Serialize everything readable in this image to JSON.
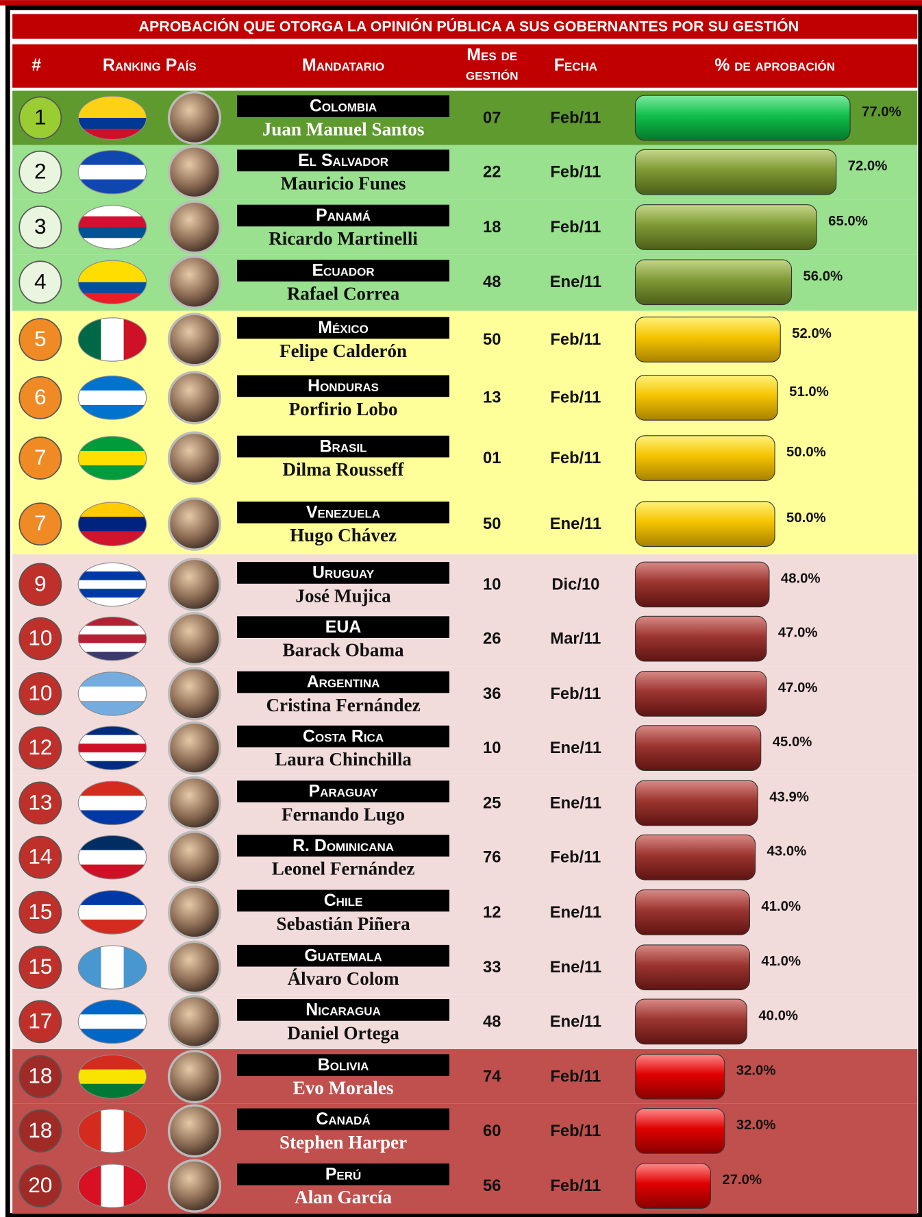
{
  "header": {
    "title": "APROBACIÓN QUE OTORGA LA OPINIÓN PÚBLICA A SUS GOBERNANTES POR SU GESTIÓN"
  },
  "table": {
    "columns": [
      "#",
      "Ranking País",
      "Mandatario",
      "Mes de",
      "gestión",
      "Fecha",
      "% de aprobación"
    ],
    "rows": [
      {
        "rank": "1",
        "country": "Colombia",
        "leader": "Juan Manuel Santos",
        "months": "07",
        "date": "Feb/11",
        "approval": 77.0,
        "approval_label": "77.0%"
      },
      {
        "rank": "2",
        "country": "El Salvador",
        "leader": "Mauricio Funes",
        "months": "22",
        "date": "Feb/11",
        "approval": 72.0,
        "approval_label": "72.0%"
      },
      {
        "rank": "3",
        "country": "Panamá",
        "leader": "Ricardo Martinelli",
        "months": "18",
        "date": "Feb/11",
        "approval": 65.0,
        "approval_label": "65.0%"
      },
      {
        "rank": "4",
        "country": "Ecuador",
        "leader": "Rafael Correa",
        "months": "48",
        "date": "Ene/11",
        "approval": 56.0,
        "approval_label": "56.0%"
      },
      {
        "rank": "5",
        "country": "México",
        "leader": "Felipe Calderón",
        "months": "50",
        "date": "Feb/11",
        "approval": 52.0,
        "approval_label": "52.0%"
      },
      {
        "rank": "6",
        "country": "Honduras",
        "leader": "Porfirio Lobo",
        "months": "13",
        "date": "Feb/11",
        "approval": 51.0,
        "approval_label": "51.0%"
      },
      {
        "rank": "7",
        "country": "Brasil",
        "leader": "Dilma Rousseff",
        "months": "01",
        "date": "Feb/11",
        "approval": 50.0,
        "approval_label": "50.0%"
      },
      {
        "rank": "7",
        "country": "Venezuela",
        "leader": "Hugo Chávez",
        "months": "50",
        "date": "Ene/11",
        "approval": 50.0,
        "approval_label": "50.0%"
      },
      {
        "rank": "9",
        "country": "Uruguay",
        "leader": "José Mujica",
        "months": "10",
        "date": "Dic/10",
        "approval": 48.0,
        "approval_label": "48.0%"
      },
      {
        "rank": "10",
        "country": "EUA",
        "leader": "Barack Obama",
        "months": "26",
        "date": "Mar/11",
        "approval": 47.0,
        "approval_label": "47.0%"
      },
      {
        "rank": "10",
        "country": "Argentina",
        "leader": "Cristina Fernández",
        "months": "36",
        "date": "Feb/11",
        "approval": 47.0,
        "approval_label": "47.0%"
      },
      {
        "rank": "12",
        "country": "Costa Rica",
        "leader": "Laura Chinchilla",
        "months": "10",
        "date": "Ene/11",
        "approval": 45.0,
        "approval_label": "45.0%"
      },
      {
        "rank": "13",
        "country": "Paraguay",
        "leader": "Fernando Lugo",
        "months": "25",
        "date": "Ene/11",
        "approval": 43.9,
        "approval_label": "43.9%"
      },
      {
        "rank": "14",
        "country": "R. Dominicana",
        "leader": "Leonel Fernández",
        "months": "76",
        "date": "Feb/11",
        "approval": 43.0,
        "approval_label": "43.0%"
      },
      {
        "rank": "15",
        "country": "Chile",
        "leader": "Sebastián Piñera",
        "months": "12",
        "date": "Ene/11",
        "approval": 41.0,
        "approval_label": "41.0%"
      },
      {
        "rank": "15",
        "country": "Guatemala",
        "leader": "Álvaro Colom",
        "months": "33",
        "date": "Ene/11",
        "approval": 41.0,
        "approval_label": "41.0%"
      },
      {
        "rank": "17",
        "country": "Nicaragua",
        "leader": "Daniel Ortega",
        "months": "48",
        "date": "Ene/11",
        "approval": 40.0,
        "approval_label": "40.0%"
      },
      {
        "rank": "18",
        "country": "Bolivia",
        "leader": "Evo Morales",
        "months": "74",
        "date": "Feb/11",
        "approval": 32.0,
        "approval_label": "32.0%"
      },
      {
        "rank": "18",
        "country": "Canadá",
        "leader": "Stephen Harper",
        "months": "60",
        "date": "Feb/11",
        "approval": 32.0,
        "approval_label": "32.0%"
      },
      {
        "rank": "20",
        "country": "Perú",
        "leader": "Alan García",
        "months": "56",
        "date": "Feb/11",
        "approval": 27.0,
        "approval_label": "27.0%"
      }
    ]
  }
}
